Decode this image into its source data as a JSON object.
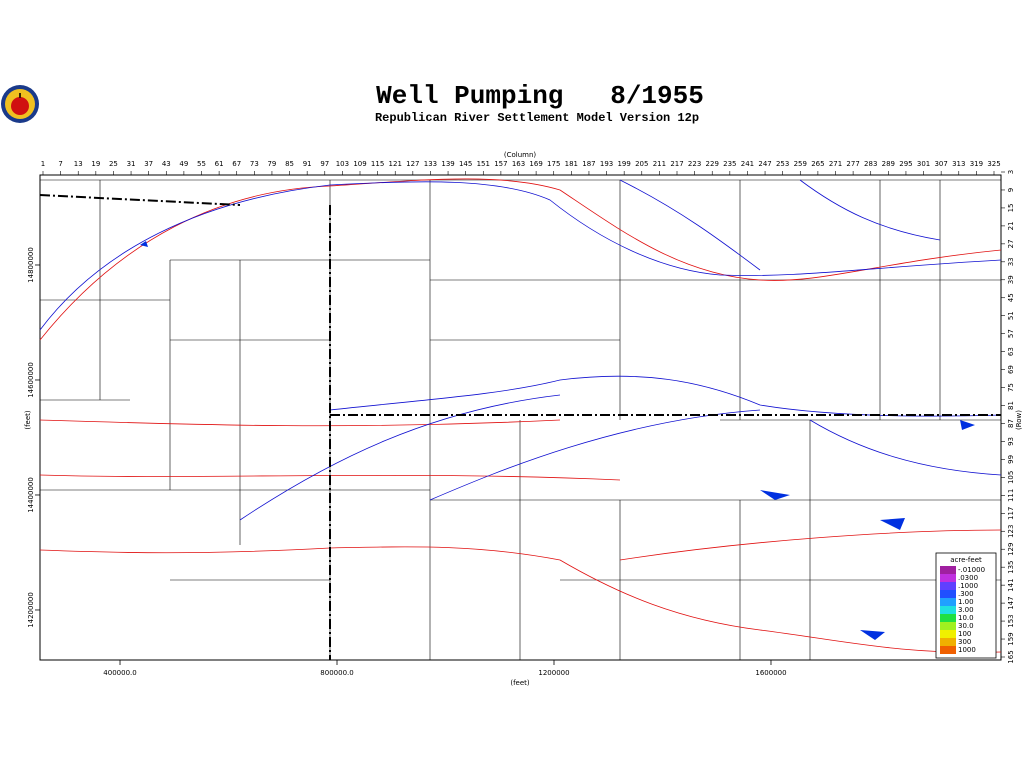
{
  "map": {
    "title": "Well Pumping   8/1955",
    "subtitle": "Republican River Settlement Model Version 12p",
    "column_label": "(Column)",
    "row_label": "(Row)",
    "x_label": "(feet)",
    "y_label": "(feet)",
    "column_lim": [
      1,
      325
    ],
    "column_ticks": [
      1,
      7,
      13,
      19,
      25,
      31,
      37,
      43,
      49,
      55,
      61,
      67,
      73,
      79,
      85,
      91,
      97,
      103,
      109,
      115,
      121,
      127,
      133,
      139,
      145,
      151,
      157,
      163,
      169,
      175,
      181,
      187,
      193,
      199,
      205,
      211,
      217,
      223,
      229,
      235,
      241,
      247,
      253,
      259,
      265,
      271,
      277,
      283,
      289,
      295,
      301,
      307,
      313,
      319,
      325
    ],
    "row_lim": [
      3,
      165
    ],
    "row_ticks": [
      3,
      9,
      15,
      21,
      27,
      33,
      39,
      45,
      51,
      57,
      63,
      69,
      75,
      81,
      87,
      93,
      99,
      105,
      111,
      117,
      123,
      129,
      135,
      141,
      147,
      153,
      159,
      165
    ],
    "xlim": [
      252500,
      2024000
    ],
    "xticks": [
      {
        "value": 400000,
        "label": "400000.0"
      },
      {
        "value": 800000,
        "label": "800000.0"
      },
      1200000,
      1600000
    ],
    "ylim": [
      14113000,
      14956500
    ],
    "yticks": [
      14800000,
      14600000,
      14400000,
      14200000
    ],
    "legend": {
      "title": "acre-feet",
      "items": [
        {
          "label": "-.01000",
          "color": "#a020a0"
        },
        {
          "label": ".0300",
          "color": "#c030e0"
        },
        {
          "label": ".1000",
          "color": "#6040ff"
        },
        {
          "label": ".300",
          "color": "#2050ff"
        },
        {
          "label": "1.00",
          "color": "#20a0ff"
        },
        {
          "label": "3.00",
          "color": "#20e0e0"
        },
        {
          "label": "10.0",
          "color": "#20e040"
        },
        {
          "label": "30.0",
          "color": "#a0f020"
        },
        {
          "label": "100",
          "color": "#f0f000"
        },
        {
          "label": "300",
          "color": "#f0b000"
        },
        {
          "label": "1000",
          "color": "#f06000"
        }
      ]
    }
  }
}
